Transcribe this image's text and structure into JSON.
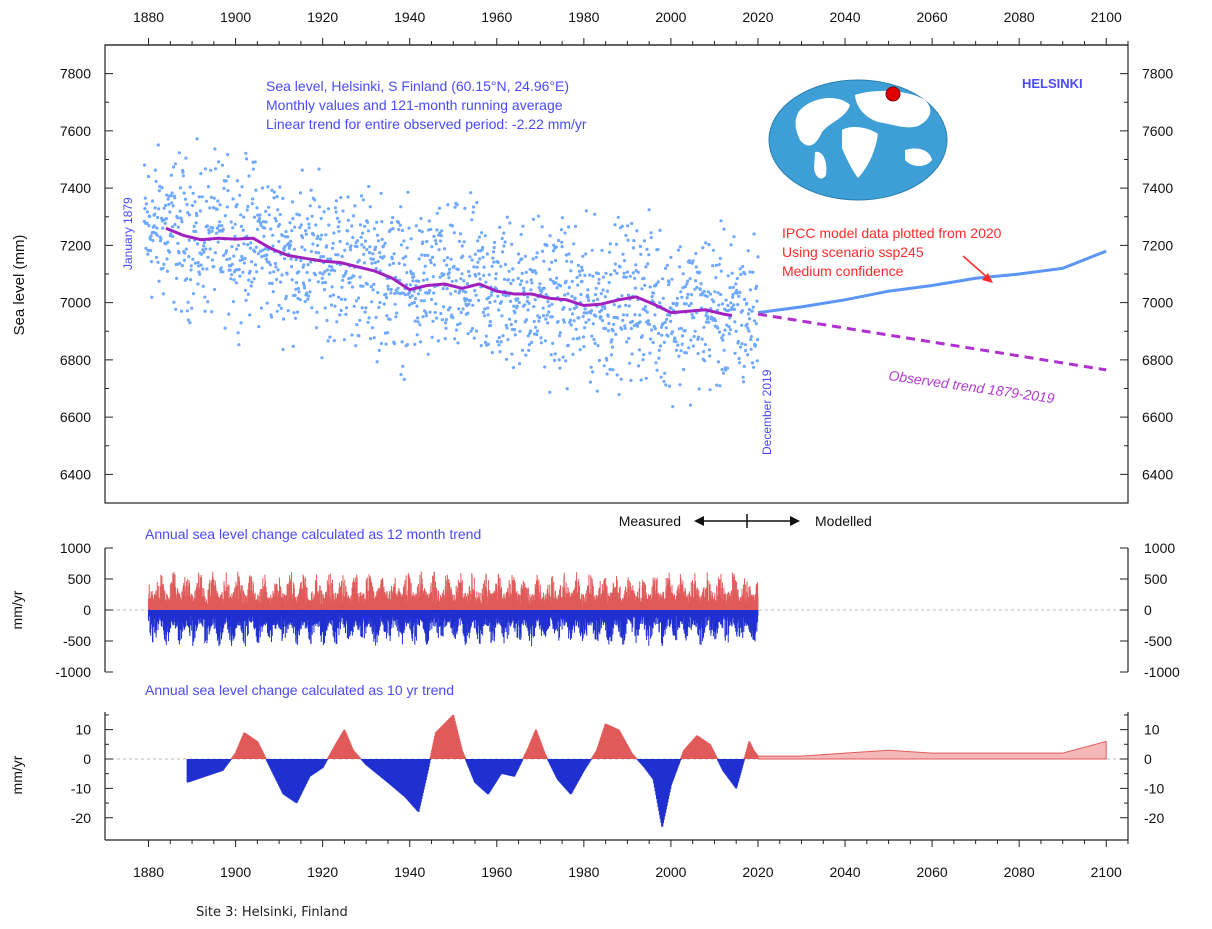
{
  "caption": "Site 3: Helsinki, Finland",
  "colors": {
    "points": "#6ea8ff",
    "running_avg": "#a020c0",
    "ipcc": "#5b95f5",
    "trend_line": "#b030d0",
    "positive": "#e05a5a",
    "negative": "#2030d0",
    "text_blue": "#4a4aff",
    "text_red": "#ff2a2a"
  },
  "chart_data": [
    {
      "type": "scatter",
      "title": "Sea level, Helsinki, S Finland (60.15°N, 24.96°E)",
      "subtitle_lines": [
        "Monthly values and 121-month running average",
        "Linear trend for entire observed period: -2.22 mm/yr"
      ],
      "station_label": "HELSINKI",
      "ylabel": "Sea level (mm)",
      "xlim": [
        1870,
        2105
      ],
      "ylim": [
        6300,
        7900
      ],
      "x_ticks": [
        1880,
        1900,
        1920,
        1940,
        1960,
        1980,
        2000,
        2020,
        2040,
        2060,
        2080,
        2100
      ],
      "y_ticks": [
        6400,
        6600,
        6800,
        7000,
        7200,
        7400,
        7600,
        7800
      ],
      "annotations": {
        "start": "January 1879",
        "end": "December 2019",
        "ipcc_lines": [
          "IPCC model data plotted from 2020",
          "Using scenario ssp245",
          "Medium confidence"
        ],
        "trend_label": "Observed trend 1879-2019",
        "measured": "Measured",
        "modelled": "Modelled"
      },
      "series": [
        {
          "name": "121-month running average",
          "x": [
            1884,
            1888,
            1892,
            1896,
            1900,
            1904,
            1908,
            1912,
            1916,
            1920,
            1924,
            1928,
            1932,
            1936,
            1940,
            1944,
            1948,
            1952,
            1956,
            1960,
            1964,
            1968,
            1972,
            1976,
            1980,
            1984,
            1988,
            1992,
            1996,
            2000,
            2004,
            2008,
            2012,
            2014
          ],
          "y": [
            7260,
            7235,
            7220,
            7225,
            7222,
            7225,
            7190,
            7165,
            7155,
            7145,
            7140,
            7125,
            7110,
            7085,
            7045,
            7060,
            7065,
            7050,
            7065,
            7040,
            7030,
            7030,
            7015,
            7010,
            6990,
            6995,
            7010,
            7020,
            6995,
            6965,
            6970,
            6975,
            6960,
            6955
          ]
        },
        {
          "name": "IPCC ssp245",
          "x": [
            2020,
            2030,
            2040,
            2050,
            2060,
            2070,
            2080,
            2090,
            2100
          ],
          "y": [
            6965,
            6985,
            7010,
            7040,
            7060,
            7085,
            7100,
            7120,
            7180
          ]
        },
        {
          "name": "Observed trend 1879-2019",
          "x": [
            2020,
            2100
          ],
          "y": [
            6960,
            6765
          ]
        }
      ]
    },
    {
      "type": "bar",
      "title": "Annual sea level change calculated as 12 month trend",
      "ylabel": "mm/yr",
      "ylim": [
        -1000,
        1000
      ],
      "y_ticks": [
        1000,
        500,
        0,
        -500,
        -1000
      ],
      "y_tick_labels_right": [
        "1000",
        "500",
        "0",
        "-500",
        "-1000"
      ],
      "x_range": [
        1880,
        2020
      ],
      "amplitude_pos": 450,
      "amplitude_neg": 420
    },
    {
      "type": "area",
      "title": "Annual sea level change calculated as 10 yr trend",
      "ylabel": "mm/yr",
      "ylim": [
        -25,
        15
      ],
      "y_ticks": [
        10,
        0,
        -10,
        -20
      ],
      "x": [
        1889,
        1893,
        1897,
        1900,
        1902,
        1905,
        1908,
        1911,
        1914,
        1917,
        1920,
        1923,
        1925,
        1927,
        1930,
        1935,
        1939,
        1942,
        1944,
        1946,
        1948,
        1950,
        1952,
        1955,
        1958,
        1961,
        1964,
        1967,
        1969,
        1971,
        1974,
        1977,
        1980,
        1983,
        1985,
        1988,
        1991,
        1994,
        1996,
        1998,
        2000,
        2003,
        2006,
        2009,
        2012,
        2015,
        2018,
        2019,
        2020,
        2030,
        2040,
        2050,
        2060,
        2070,
        2080,
        2090,
        2100
      ],
      "y": [
        -8,
        -6,
        -4,
        2,
        9,
        6,
        -3,
        -12,
        -15,
        -6,
        -3,
        5,
        10,
        3,
        -2,
        -8,
        -13,
        -18,
        -5,
        9,
        12,
        15,
        3,
        -8,
        -12,
        -5,
        -6,
        3,
        10,
        2,
        -7,
        -12,
        -4,
        3,
        12,
        10,
        2,
        -3,
        -7,
        -23,
        -9,
        3,
        8,
        5,
        -4,
        -10,
        6,
        3,
        1,
        1,
        2,
        3,
        2,
        2,
        2,
        2,
        6
      ]
    }
  ]
}
